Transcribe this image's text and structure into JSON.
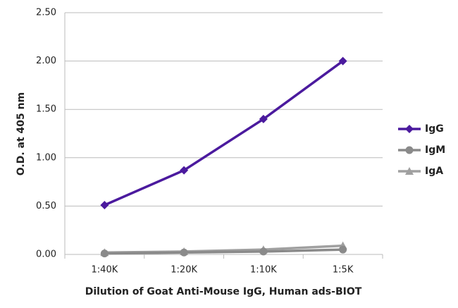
{
  "chart_data": {
    "type": "line",
    "x_label": "Dilution of Goat Anti-Mouse IgG, Human ads-BIOT",
    "y_label": "O.D. at 405 nm",
    "categories": [
      "1:40K",
      "1:20K",
      "1:10K",
      "1:5K"
    ],
    "series": [
      {
        "name": "IgG",
        "color": "#4b1a9e",
        "marker": "diamond",
        "values": [
          0.51,
          0.87,
          1.4,
          2.0
        ]
      },
      {
        "name": "IgM",
        "color": "#8a8a8a",
        "marker": "circle",
        "values": [
          0.01,
          0.02,
          0.03,
          0.05
        ]
      },
      {
        "name": "IgA",
        "color": "#a0a0a0",
        "marker": "triangle",
        "values": [
          0.02,
          0.03,
          0.05,
          0.09
        ]
      }
    ],
    "ylim": [
      0,
      2.5
    ],
    "yticks": [
      {
        "value": 0,
        "label": "0.00"
      },
      {
        "value": 0.5,
        "label": "0.50"
      },
      {
        "value": 1,
        "label": "1.00"
      },
      {
        "value": 1.5,
        "label": "1.50"
      },
      {
        "value": 2,
        "label": "2.00"
      },
      {
        "value": 2.5,
        "label": "2.50"
      }
    ],
    "grid": true,
    "legend": "right"
  }
}
